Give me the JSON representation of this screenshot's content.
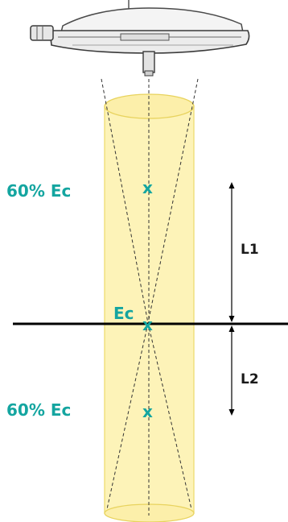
{
  "labels": {
    "upper_intensity": "60% Ec",
    "center_intensity": "Ec",
    "lower_intensity": "60% Ec",
    "upper_distance": "L1",
    "lower_distance": "L2"
  },
  "markers": {
    "upper": "x",
    "center": "x",
    "lower": "x"
  },
  "colors": {
    "accent": "#14a5a0",
    "beam_fill": "#fdf3b8",
    "beam_edge": "#eedc72",
    "line": "#000000"
  },
  "icons": {
    "lamp": "surgical-lamp-icon"
  }
}
